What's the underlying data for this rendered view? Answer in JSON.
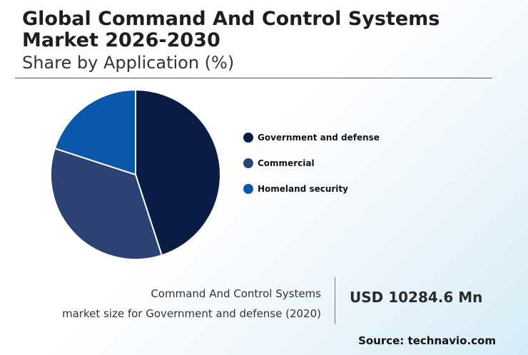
{
  "header": {
    "title": "Global Command And Control Systems Market 2026-2030",
    "subtitle": "Share by Application (%)"
  },
  "chart_data": {
    "type": "pie",
    "categories": [
      "Government and defense",
      "Commercial",
      "Homeland security"
    ],
    "values": [
      45,
      35,
      20
    ],
    "colors": [
      "#0a1c43",
      "#2b4272",
      "#0857a8"
    ],
    "legend_position": "right"
  },
  "footer": {
    "description_line1": "Command And Control Systems",
    "description_line2": "market size for Government and defense (2020)",
    "value": "USD 10284.6 Mn",
    "source": "Source: technavio.com"
  }
}
